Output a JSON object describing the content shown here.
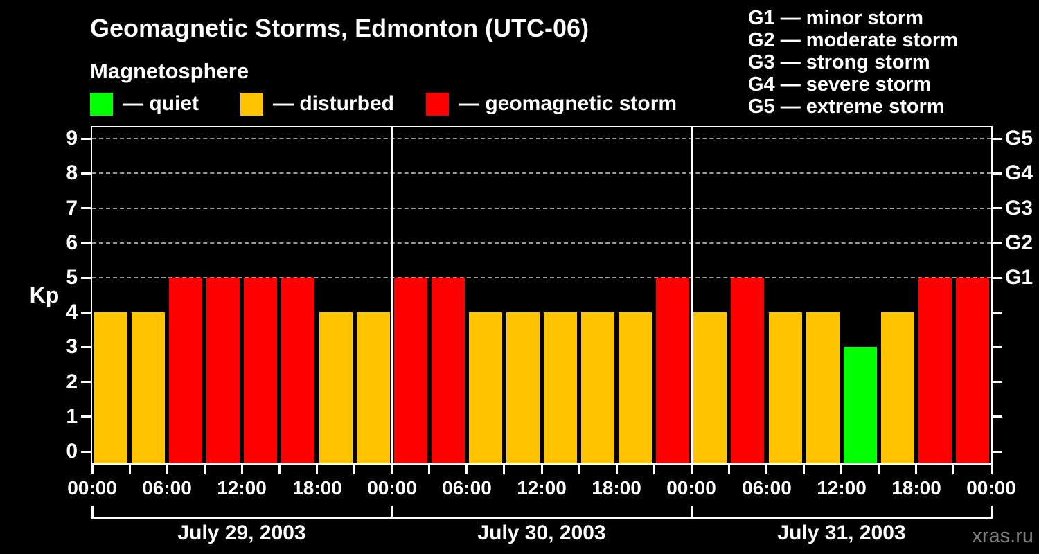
{
  "header": {
    "title": "Geomagnetic Storms, Edmonton (UTC-06)",
    "subtitle": "Magnetosphere"
  },
  "legend": {
    "items": [
      {
        "name": "quiet",
        "label": "— quiet",
        "color": "#00ff00"
      },
      {
        "name": "disturbed",
        "label": "— disturbed",
        "color": "#ffc300"
      },
      {
        "name": "storm",
        "label": "— geomagnetic storm",
        "color": "#ff0000"
      }
    ]
  },
  "storm_scale_legend": {
    "lines": [
      "G1 — minor storm",
      "G2 — moderate storm",
      "G3 — strong storm",
      "G4 — severe storm",
      "G5 — extreme storm"
    ]
  },
  "watermark": "xras.ru",
  "chart_data": {
    "type": "bar",
    "title": "Geomagnetic Storms, Edmonton (UTC-06)",
    "subtitle": "Magnetosphere",
    "ylabel": "Kp",
    "ylim": [
      0,
      9
    ],
    "y_ticks": [
      0,
      1,
      2,
      3,
      4,
      5,
      6,
      7,
      8,
      9
    ],
    "grid_levels": [
      5,
      6,
      7,
      8,
      9
    ],
    "right_axis_labels": [
      {
        "label": "G1",
        "value": 5
      },
      {
        "label": "G2",
        "value": 6
      },
      {
        "label": "G3",
        "value": 7
      },
      {
        "label": "G4",
        "value": 8
      },
      {
        "label": "G5",
        "value": 9
      }
    ],
    "interval_hours": 3,
    "x_tick_labels": [
      "00:00",
      "06:00",
      "12:00",
      "18:00",
      "00:00",
      "06:00",
      "12:00",
      "18:00",
      "00:00",
      "06:00",
      "12:00",
      "18:00",
      "00:00"
    ],
    "days": [
      {
        "date": "July 29, 2003",
        "values": [
          4,
          4,
          5,
          5,
          5,
          5,
          4,
          4
        ]
      },
      {
        "date": "July 30, 2003",
        "values": [
          5,
          5,
          4,
          4,
          4,
          4,
          4,
          5
        ]
      },
      {
        "date": "July 31, 2003",
        "values": [
          4,
          5,
          4,
          4,
          3,
          4,
          5,
          5
        ]
      }
    ],
    "color_rules": {
      "quiet_max_kp": 3,
      "disturbed_kp": 4,
      "storm_min_kp": 5
    },
    "colors": {
      "quiet": "#00ff00",
      "disturbed": "#ffc300",
      "storm": "#ff0000"
    },
    "legend_position": "top-left",
    "grid": "dashed horizontal at G1–G5 levels only"
  }
}
